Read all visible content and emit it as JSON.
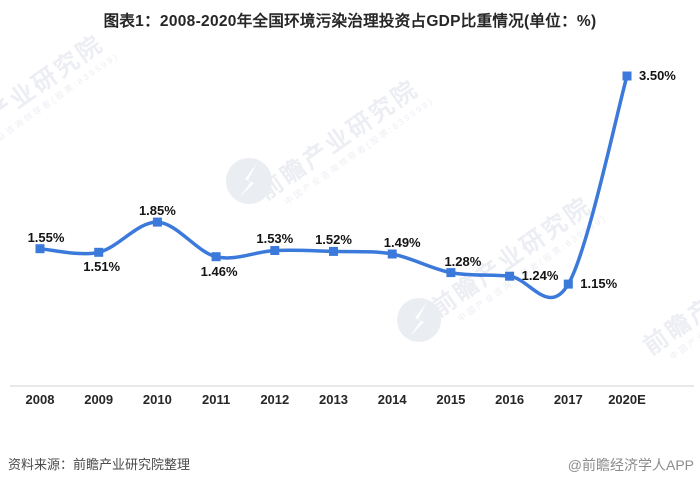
{
  "header": {
    "title": "图表1：2008-2020年全国环境污染治理投资占GDP比重情况(单位：%)"
  },
  "chart_data": {
    "type": "line",
    "smooth": true,
    "title": "图表1：2008-2020年全国环境污染治理投资占GDP比重情况(单位：%)",
    "unit": "%",
    "x": [
      "2008",
      "2009",
      "2010",
      "2011",
      "2012",
      "2013",
      "2014",
      "2015",
      "2016",
      "2017",
      "2020E"
    ],
    "values": [
      1.55,
      1.51,
      1.85,
      1.46,
      1.53,
      1.52,
      1.49,
      1.28,
      1.24,
      1.15,
      3.5
    ],
    "point_labels": [
      "1.55%",
      "1.51%",
      "1.85%",
      "1.46%",
      "1.53%",
      "1.52%",
      "1.49%",
      "1.28%",
      "1.24%",
      "1.15%",
      "3.50%"
    ],
    "label_placements": [
      "above",
      "below",
      "above",
      "below",
      "above",
      "above",
      "above",
      "above",
      "right",
      "right",
      "right"
    ],
    "ylim": [
      0,
      4
    ],
    "grid": false,
    "legend": false,
    "line_color": "#3b79da",
    "marker_color": "#3b79da",
    "axis_color": "#dcdcdc"
  },
  "footer": {
    "source": "资料来源：前瞻产业研究院整理",
    "credit": "@前瞻经济学人APP"
  },
  "watermark": {
    "text": "前瞻产业研究院",
    "subtext": "中国产业咨询领导者(股票:839599)"
  }
}
